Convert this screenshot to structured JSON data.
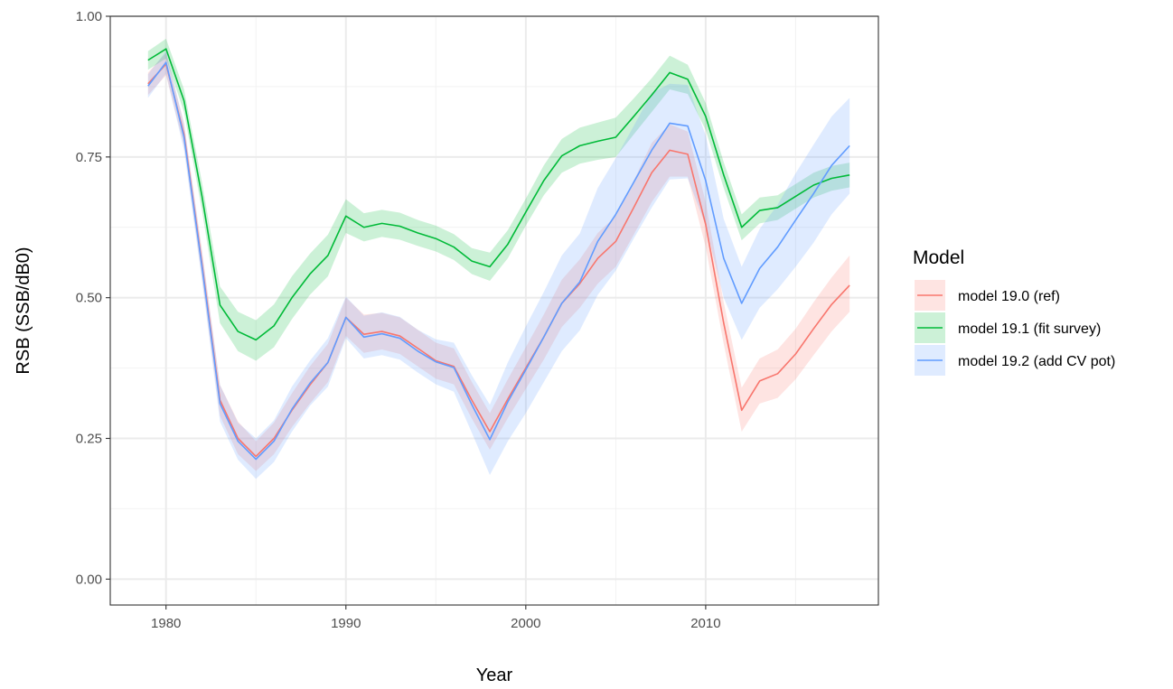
{
  "chart_data": {
    "type": "line",
    "xlabel": "Year",
    "ylabel": "RSB (SSB/dB0)",
    "xlim": [
      1976.9,
      2019.6
    ],
    "ylim": [
      -0.046,
      1.0
    ],
    "x_ticks": [
      1980,
      1990,
      2000,
      2010
    ],
    "x_tick_labels": [
      "1980",
      "1990",
      "2000",
      "2010"
    ],
    "y_ticks": [
      0.0,
      0.25,
      0.5,
      0.75,
      1.0
    ],
    "y_tick_labels": [
      "0.00",
      "0.25",
      "0.50",
      "0.75",
      "1.00"
    ],
    "grid": true,
    "legend": {
      "title": "Model",
      "position": "right",
      "entries": [
        "model 19.0 (ref)",
        "model 19.1 (fit survey)",
        "model 19.2 (add CV pot)"
      ]
    },
    "x": [
      1979,
      1980,
      1981,
      1982,
      1983,
      1984,
      1985,
      1986,
      1987,
      1988,
      1989,
      1990,
      1991,
      1992,
      1993,
      1994,
      1995,
      1996,
      1997,
      1998,
      1999,
      2000,
      2001,
      2002,
      2003,
      2004,
      2005,
      2006,
      2007,
      2008,
      2009,
      2010,
      2011,
      2012,
      2013,
      2014,
      2015,
      2016,
      2017,
      2018
    ],
    "series": [
      {
        "name": "model 19.0 (ref)",
        "color": "#F8766D",
        "fill": "#F8766D",
        "values": [
          0.88,
          0.915,
          0.79,
          0.56,
          0.318,
          0.25,
          0.218,
          0.25,
          0.3,
          0.345,
          0.385,
          0.465,
          0.435,
          0.44,
          0.432,
          0.41,
          0.388,
          0.378,
          0.318,
          0.262,
          0.32,
          0.375,
          0.43,
          0.49,
          0.525,
          0.57,
          0.6,
          0.66,
          0.722,
          0.762,
          0.755,
          0.63,
          0.455,
          0.3,
          0.352,
          0.365,
          0.4,
          0.445,
          0.488,
          0.522
        ],
        "lower": [
          0.86,
          0.895,
          0.77,
          0.535,
          0.29,
          0.222,
          0.192,
          0.222,
          0.27,
          0.312,
          0.35,
          0.432,
          0.402,
          0.408,
          0.4,
          0.378,
          0.356,
          0.346,
          0.285,
          0.23,
          0.286,
          0.338,
          0.39,
          0.448,
          0.482,
          0.525,
          0.555,
          0.612,
          0.67,
          0.715,
          0.715,
          0.59,
          0.418,
          0.262,
          0.312,
          0.322,
          0.355,
          0.398,
          0.44,
          0.475
        ],
        "upper": [
          0.9,
          0.935,
          0.81,
          0.585,
          0.345,
          0.28,
          0.245,
          0.278,
          0.33,
          0.378,
          0.418,
          0.5,
          0.47,
          0.473,
          0.465,
          0.443,
          0.42,
          0.41,
          0.35,
          0.295,
          0.355,
          0.412,
          0.47,
          0.532,
          0.568,
          0.615,
          0.645,
          0.708,
          0.775,
          0.808,
          0.795,
          0.67,
          0.492,
          0.34,
          0.392,
          0.408,
          0.445,
          0.492,
          0.536,
          0.575
        ]
      },
      {
        "name": "model 19.1 (fit survey)",
        "color": "#00BA38",
        "fill": "#00BA38",
        "values": [
          0.922,
          0.942,
          0.85,
          0.68,
          0.487,
          0.44,
          0.425,
          0.45,
          0.5,
          0.542,
          0.575,
          0.645,
          0.625,
          0.632,
          0.627,
          0.615,
          0.605,
          0.59,
          0.565,
          0.555,
          0.595,
          0.652,
          0.708,
          0.752,
          0.77,
          0.778,
          0.785,
          0.822,
          0.86,
          0.9,
          0.888,
          0.822,
          0.718,
          0.625,
          0.655,
          0.66,
          0.68,
          0.7,
          0.712,
          0.718
        ],
        "lower": [
          0.905,
          0.925,
          0.83,
          0.655,
          0.455,
          0.405,
          0.388,
          0.412,
          0.462,
          0.505,
          0.538,
          0.615,
          0.6,
          0.608,
          0.603,
          0.592,
          0.582,
          0.567,
          0.542,
          0.53,
          0.57,
          0.628,
          0.682,
          0.722,
          0.738,
          0.745,
          0.75,
          0.79,
          0.83,
          0.87,
          0.862,
          0.798,
          0.695,
          0.602,
          0.632,
          0.638,
          0.658,
          0.678,
          0.69,
          0.696
        ],
        "upper": [
          0.938,
          0.96,
          0.87,
          0.705,
          0.52,
          0.475,
          0.46,
          0.488,
          0.538,
          0.578,
          0.612,
          0.675,
          0.65,
          0.656,
          0.651,
          0.638,
          0.628,
          0.613,
          0.588,
          0.58,
          0.62,
          0.676,
          0.735,
          0.782,
          0.802,
          0.811,
          0.82,
          0.854,
          0.89,
          0.93,
          0.914,
          0.846,
          0.741,
          0.648,
          0.678,
          0.682,
          0.702,
          0.722,
          0.734,
          0.74
        ]
      },
      {
        "name": "model 19.2 (add CV pot)",
        "color": "#619CFF",
        "fill": "#619CFF",
        "values": [
          0.876,
          0.918,
          0.785,
          0.555,
          0.312,
          0.245,
          0.213,
          0.245,
          0.302,
          0.348,
          0.385,
          0.465,
          0.43,
          0.436,
          0.428,
          0.405,
          0.386,
          0.376,
          0.31,
          0.248,
          0.315,
          0.372,
          0.43,
          0.49,
          0.528,
          0.6,
          0.648,
          0.705,
          0.762,
          0.81,
          0.805,
          0.708,
          0.57,
          0.49,
          0.552,
          0.59,
          0.638,
          0.685,
          0.735,
          0.77
        ],
        "lower": [
          0.855,
          0.898,
          0.762,
          0.53,
          0.28,
          0.212,
          0.178,
          0.208,
          0.262,
          0.308,
          0.342,
          0.428,
          0.392,
          0.398,
          0.39,
          0.367,
          0.346,
          0.333,
          0.26,
          0.185,
          0.245,
          0.295,
          0.35,
          0.405,
          0.442,
          0.505,
          0.548,
          0.605,
          0.66,
          0.71,
          0.712,
          0.628,
          0.5,
          0.425,
          0.482,
          0.515,
          0.555,
          0.598,
          0.648,
          0.685
        ],
        "upper": [
          0.897,
          0.938,
          0.808,
          0.58,
          0.345,
          0.278,
          0.25,
          0.282,
          0.342,
          0.388,
          0.428,
          0.502,
          0.468,
          0.474,
          0.466,
          0.443,
          0.426,
          0.42,
          0.362,
          0.31,
          0.385,
          0.449,
          0.51,
          0.575,
          0.614,
          0.695,
          0.748,
          0.805,
          0.864,
          0.88,
          0.878,
          0.788,
          0.64,
          0.555,
          0.622,
          0.665,
          0.721,
          0.772,
          0.822,
          0.855
        ]
      }
    ]
  }
}
